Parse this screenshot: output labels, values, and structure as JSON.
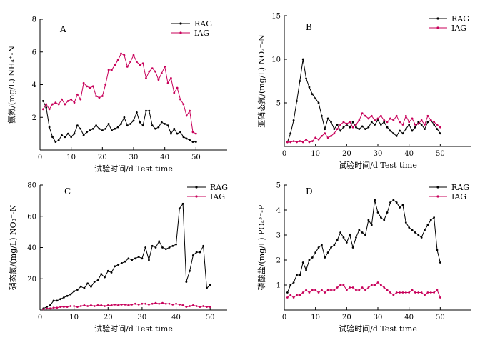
{
  "colors": {
    "rag": "#000000",
    "iag": "#c8005a"
  },
  "chart_data": [
    {
      "type": "line",
      "panel": "A",
      "ylabel": "氨氮/(mg/L) NH₄⁺-N",
      "xlabel": "试验时间/d Test time",
      "xlim": [
        0,
        60
      ],
      "ylim": [
        0,
        8
      ],
      "xticks": [
        0,
        10,
        20,
        30,
        40,
        50
      ],
      "yticks": [
        2,
        4,
        6,
        8
      ],
      "legend_position": "top-right",
      "series": [
        {
          "name": "RAG",
          "x": [
            1,
            2,
            3,
            4,
            5,
            6,
            7,
            8,
            9,
            10,
            11,
            12,
            13,
            14,
            15,
            16,
            17,
            18,
            19,
            20,
            21,
            22,
            23,
            24,
            25,
            26,
            27,
            28,
            29,
            30,
            31,
            32,
            33,
            34,
            35,
            36,
            37,
            38,
            39,
            40,
            41,
            42,
            43,
            44,
            45,
            46,
            47,
            48,
            49,
            50
          ],
          "values": [
            3.0,
            2.6,
            1.4,
            0.8,
            0.5,
            0.6,
            0.9,
            0.8,
            1.0,
            0.8,
            1.0,
            1.5,
            1.3,
            0.9,
            1.1,
            1.2,
            1.3,
            1.5,
            1.3,
            1.2,
            1.3,
            1.6,
            1.2,
            1.3,
            1.4,
            1.6,
            2.0,
            1.5,
            1.6,
            1.8,
            2.3,
            1.7,
            1.5,
            2.4,
            2.4,
            1.5,
            1.3,
            1.4,
            1.7,
            1.6,
            1.5,
            1.0,
            1.3,
            1.0,
            1.1,
            0.8,
            0.7,
            0.6,
            0.5,
            0.5
          ]
        },
        {
          "name": "IAG",
          "x": [
            1,
            2,
            3,
            4,
            5,
            6,
            7,
            8,
            9,
            10,
            11,
            12,
            13,
            14,
            15,
            16,
            17,
            18,
            19,
            20,
            21,
            22,
            23,
            24,
            25,
            26,
            27,
            28,
            29,
            30,
            31,
            32,
            33,
            34,
            35,
            36,
            37,
            38,
            39,
            40,
            41,
            42,
            43,
            44,
            45,
            46,
            47,
            48,
            49,
            50
          ],
          "values": [
            2.5,
            2.8,
            2.5,
            2.8,
            2.9,
            2.8,
            3.1,
            2.8,
            3.0,
            3.1,
            2.9,
            3.4,
            3.1,
            4.1,
            3.9,
            3.8,
            3.9,
            3.3,
            3.2,
            3.3,
            4.0,
            4.9,
            4.9,
            5.2,
            5.5,
            5.9,
            5.8,
            5.1,
            5.4,
            5.8,
            5.4,
            5.2,
            5.3,
            4.4,
            4.8,
            5.0,
            4.8,
            4.3,
            4.7,
            5.1,
            4.1,
            4.4,
            3.5,
            3.8,
            3.1,
            2.8,
            2.1,
            2.4,
            1.1,
            1.0
          ]
        }
      ]
    },
    {
      "type": "line",
      "panel": "B",
      "ylabel": "亚硝态氮/(mg/L) NO₂⁻-N",
      "xlabel": "试验时间/d Test time",
      "xlim": [
        0,
        60
      ],
      "ylim": [
        0,
        15
      ],
      "xticks": [
        0,
        10,
        20,
        30,
        40,
        50
      ],
      "yticks": [
        5,
        10,
        15
      ],
      "legend_position": "top-right",
      "series": [
        {
          "name": "RAG",
          "x": [
            1,
            2,
            3,
            4,
            5,
            6,
            7,
            8,
            9,
            10,
            11,
            12,
            13,
            14,
            15,
            16,
            17,
            18,
            19,
            20,
            21,
            22,
            23,
            24,
            25,
            26,
            27,
            28,
            29,
            30,
            31,
            32,
            33,
            34,
            35,
            36,
            37,
            38,
            39,
            40,
            41,
            42,
            43,
            44,
            45,
            46,
            47,
            48,
            49,
            50
          ],
          "values": [
            0.5,
            1.5,
            3.0,
            5.2,
            7.5,
            10.0,
            7.8,
            6.8,
            6.0,
            5.5,
            5.0,
            3.5,
            2.0,
            3.2,
            2.8,
            2.0,
            2.5,
            1.8,
            2.2,
            2.5,
            2.2,
            2.8,
            2.2,
            2.0,
            2.3,
            2.0,
            2.2,
            2.8,
            2.5,
            3.0,
            2.5,
            2.8,
            2.2,
            1.8,
            1.5,
            1.2,
            1.8,
            1.5,
            2.0,
            2.5,
            1.8,
            2.2,
            2.8,
            2.5,
            2.0,
            2.8,
            3.0,
            2.5,
            2.0,
            1.5
          ]
        },
        {
          "name": "IAG",
          "x": [
            1,
            2,
            3,
            4,
            5,
            6,
            7,
            8,
            9,
            10,
            11,
            12,
            13,
            14,
            15,
            16,
            17,
            18,
            19,
            20,
            21,
            22,
            23,
            24,
            25,
            26,
            27,
            28,
            29,
            30,
            31,
            32,
            33,
            34,
            35,
            36,
            37,
            38,
            39,
            40,
            41,
            42,
            43,
            44,
            45,
            46,
            47,
            48,
            49,
            50
          ],
          "values": [
            0.5,
            0.5,
            0.6,
            0.5,
            0.6,
            0.5,
            0.8,
            0.5,
            0.6,
            1.0,
            0.8,
            1.2,
            1.5,
            1.0,
            1.2,
            1.5,
            2.0,
            2.5,
            2.8,
            2.6,
            2.8,
            2.2,
            2.5,
            3.0,
            3.8,
            3.5,
            3.2,
            3.5,
            3.0,
            3.2,
            3.5,
            3.0,
            2.8,
            3.2,
            3.0,
            3.5,
            2.8,
            2.5,
            3.5,
            2.8,
            3.2,
            2.5,
            2.6,
            3.0,
            2.5,
            3.5,
            3.0,
            2.8,
            2.5,
            2.2
          ]
        }
      ]
    },
    {
      "type": "line",
      "panel": "C",
      "ylabel": "硝态氮/(mg/L) NO₃⁻-N",
      "xlabel": "试验时间/d Test time",
      "xlim": [
        0,
        55
      ],
      "ylim": [
        0,
        80
      ],
      "xticks": [
        0,
        10,
        20,
        30,
        40,
        50
      ],
      "yticks": [
        20,
        40,
        60,
        80
      ],
      "legend_position": "top-right",
      "series": [
        {
          "name": "RAG",
          "x": [
            1,
            2,
            3,
            4,
            5,
            6,
            7,
            8,
            9,
            10,
            11,
            12,
            13,
            14,
            15,
            16,
            17,
            18,
            19,
            20,
            21,
            22,
            23,
            24,
            25,
            26,
            27,
            28,
            29,
            30,
            31,
            32,
            33,
            34,
            35,
            36,
            37,
            38,
            39,
            40,
            41,
            42,
            43,
            44,
            45,
            46,
            47,
            48,
            49,
            50
          ],
          "values": [
            1,
            2,
            3,
            6,
            6,
            7,
            8,
            9,
            10,
            12,
            13,
            15,
            14,
            17,
            15,
            18,
            19,
            23,
            21,
            25,
            24,
            28,
            29,
            30,
            31,
            33,
            32,
            33,
            34,
            33,
            40,
            32,
            41,
            40,
            44,
            40,
            39,
            40,
            41,
            42,
            65,
            68,
            18,
            25,
            35,
            37,
            37,
            41,
            14,
            16
          ]
        },
        {
          "name": "IAG",
          "x": [
            1,
            2,
            3,
            4,
            5,
            6,
            7,
            8,
            9,
            10,
            11,
            12,
            13,
            14,
            15,
            16,
            17,
            18,
            19,
            20,
            21,
            22,
            23,
            24,
            25,
            26,
            27,
            28,
            29,
            30,
            31,
            32,
            33,
            34,
            35,
            36,
            37,
            38,
            39,
            40,
            41,
            42,
            43,
            44,
            45,
            46,
            47,
            48,
            49,
            50
          ],
          "values": [
            0.5,
            1,
            1,
            1.5,
            1.5,
            2,
            2,
            2,
            2.5,
            2.5,
            2,
            2.5,
            3,
            2.5,
            3,
            2.5,
            3,
            3,
            2.5,
            3,
            3,
            3.5,
            3,
            3.5,
            3.5,
            3,
            3.5,
            4,
            3.5,
            4,
            4,
            3.5,
            4,
            4.5,
            4,
            4.5,
            4,
            4,
            3.5,
            4,
            3.5,
            3,
            2,
            2.5,
            3,
            2.5,
            2,
            2.5,
            2,
            2
          ]
        }
      ]
    },
    {
      "type": "line",
      "panel": "D",
      "ylabel": "磷酸盐/(mg/L) PO₄³⁻-P",
      "xlabel": "试验时间/d Test time",
      "xlim": [
        0,
        60
      ],
      "ylim": [
        0,
        5
      ],
      "xticks": [
        0,
        10,
        20,
        30,
        40,
        50
      ],
      "yticks": [
        1,
        2,
        3,
        4,
        5
      ],
      "legend_position": "top-right",
      "series": [
        {
          "name": "RAG",
          "x": [
            1,
            2,
            3,
            4,
            5,
            6,
            7,
            8,
            9,
            10,
            11,
            12,
            13,
            14,
            15,
            16,
            17,
            18,
            19,
            20,
            21,
            22,
            23,
            24,
            25,
            26,
            27,
            28,
            29,
            30,
            31,
            32,
            33,
            34,
            35,
            36,
            37,
            38,
            39,
            40,
            41,
            42,
            43,
            44,
            45,
            46,
            47,
            48,
            49,
            50
          ],
          "values": [
            0.7,
            1.0,
            1.1,
            1.4,
            1.4,
            1.9,
            1.6,
            2.0,
            2.1,
            2.3,
            2.5,
            2.6,
            2.1,
            2.3,
            2.5,
            2.6,
            2.8,
            3.1,
            2.9,
            2.7,
            3.0,
            2.5,
            2.9,
            3.2,
            3.1,
            3.0,
            3.6,
            3.4,
            4.4,
            3.9,
            3.7,
            3.6,
            3.9,
            4.3,
            4.4,
            4.3,
            4.1,
            4.2,
            3.5,
            3.3,
            3.2,
            3.1,
            3.0,
            2.9,
            3.2,
            3.4,
            3.6,
            3.7,
            2.4,
            1.9
          ]
        },
        {
          "name": "IAG",
          "x": [
            1,
            2,
            3,
            4,
            5,
            6,
            7,
            8,
            9,
            10,
            11,
            12,
            13,
            14,
            15,
            16,
            17,
            18,
            19,
            20,
            21,
            22,
            23,
            24,
            25,
            26,
            27,
            28,
            29,
            30,
            31,
            32,
            33,
            34,
            35,
            36,
            37,
            38,
            39,
            40,
            41,
            42,
            43,
            44,
            45,
            46,
            47,
            48,
            49,
            50
          ],
          "values": [
            0.5,
            0.6,
            0.5,
            0.6,
            0.6,
            0.7,
            0.8,
            0.7,
            0.8,
            0.8,
            0.7,
            0.8,
            0.7,
            0.8,
            0.8,
            0.8,
            0.9,
            1.0,
            1.0,
            0.8,
            0.9,
            0.9,
            0.8,
            0.8,
            0.9,
            0.8,
            0.9,
            1.0,
            1.0,
            1.1,
            1.0,
            0.9,
            0.8,
            0.7,
            0.6,
            0.7,
            0.7,
            0.7,
            0.7,
            0.7,
            0.8,
            0.7,
            0.7,
            0.7,
            0.6,
            0.7,
            0.7,
            0.7,
            0.8,
            0.5
          ]
        }
      ]
    }
  ]
}
